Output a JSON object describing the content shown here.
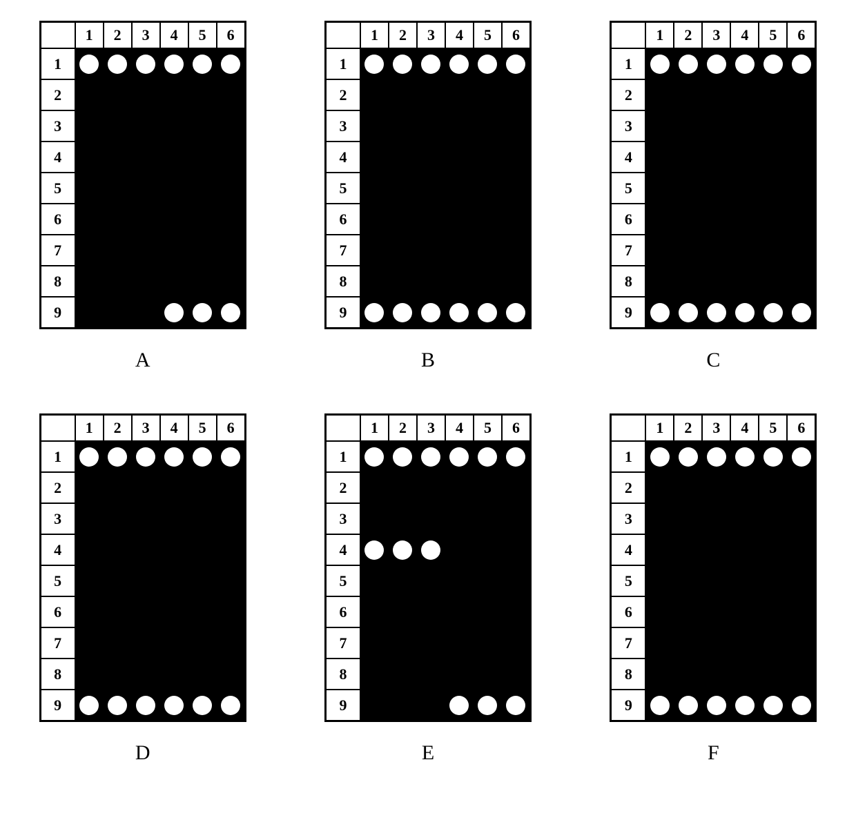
{
  "layout": {
    "cols": 6,
    "rows": 9,
    "col_labels": [
      "1",
      "2",
      "3",
      "4",
      "5",
      "6"
    ],
    "row_labels": [
      "1",
      "2",
      "3",
      "4",
      "5",
      "6",
      "7",
      "8",
      "9"
    ]
  },
  "colors": {
    "plate_bg": "#000000",
    "spot_color": "#ffffff",
    "border_color": "#000000",
    "page_bg": "#ffffff"
  },
  "typography": {
    "label_fontsize_pt": 22,
    "panel_label_fontsize_pt": 30,
    "font_family": "Times New Roman"
  },
  "panels": [
    {
      "label": "A",
      "spots": [
        {
          "r": 1,
          "c": 1
        },
        {
          "r": 1,
          "c": 2
        },
        {
          "r": 1,
          "c": 3
        },
        {
          "r": 1,
          "c": 4
        },
        {
          "r": 1,
          "c": 5
        },
        {
          "r": 1,
          "c": 6
        },
        {
          "r": 9,
          "c": 4
        },
        {
          "r": 9,
          "c": 5
        },
        {
          "r": 9,
          "c": 6
        }
      ]
    },
    {
      "label": "B",
      "spots": [
        {
          "r": 1,
          "c": 1
        },
        {
          "r": 1,
          "c": 2
        },
        {
          "r": 1,
          "c": 3
        },
        {
          "r": 1,
          "c": 4
        },
        {
          "r": 1,
          "c": 5
        },
        {
          "r": 1,
          "c": 6
        },
        {
          "r": 9,
          "c": 1
        },
        {
          "r": 9,
          "c": 2
        },
        {
          "r": 9,
          "c": 3
        },
        {
          "r": 9,
          "c": 4
        },
        {
          "r": 9,
          "c": 5
        },
        {
          "r": 9,
          "c": 6
        }
      ]
    },
    {
      "label": "C",
      "spots": [
        {
          "r": 1,
          "c": 1
        },
        {
          "r": 1,
          "c": 2
        },
        {
          "r": 1,
          "c": 3
        },
        {
          "r": 1,
          "c": 4
        },
        {
          "r": 1,
          "c": 5
        },
        {
          "r": 1,
          "c": 6
        },
        {
          "r": 9,
          "c": 1
        },
        {
          "r": 9,
          "c": 2
        },
        {
          "r": 9,
          "c": 3
        },
        {
          "r": 9,
          "c": 4
        },
        {
          "r": 9,
          "c": 5
        },
        {
          "r": 9,
          "c": 6
        }
      ]
    },
    {
      "label": "D",
      "spots": [
        {
          "r": 1,
          "c": 1
        },
        {
          "r": 1,
          "c": 2
        },
        {
          "r": 1,
          "c": 3
        },
        {
          "r": 1,
          "c": 4
        },
        {
          "r": 1,
          "c": 5
        },
        {
          "r": 1,
          "c": 6
        },
        {
          "r": 9,
          "c": 1
        },
        {
          "r": 9,
          "c": 2
        },
        {
          "r": 9,
          "c": 3
        },
        {
          "r": 9,
          "c": 4
        },
        {
          "r": 9,
          "c": 5
        },
        {
          "r": 9,
          "c": 6
        }
      ]
    },
    {
      "label": "E",
      "spots": [
        {
          "r": 1,
          "c": 1
        },
        {
          "r": 1,
          "c": 2
        },
        {
          "r": 1,
          "c": 3
        },
        {
          "r": 1,
          "c": 4
        },
        {
          "r": 1,
          "c": 5
        },
        {
          "r": 1,
          "c": 6
        },
        {
          "r": 4,
          "c": 1
        },
        {
          "r": 4,
          "c": 2
        },
        {
          "r": 4,
          "c": 3
        },
        {
          "r": 9,
          "c": 4
        },
        {
          "r": 9,
          "c": 5
        },
        {
          "r": 9,
          "c": 6
        }
      ]
    },
    {
      "label": "F",
      "spots": [
        {
          "r": 1,
          "c": 1
        },
        {
          "r": 1,
          "c": 2
        },
        {
          "r": 1,
          "c": 3
        },
        {
          "r": 1,
          "c": 4
        },
        {
          "r": 1,
          "c": 5
        },
        {
          "r": 1,
          "c": 6
        },
        {
          "r": 9,
          "c": 1
        },
        {
          "r": 9,
          "c": 2
        },
        {
          "r": 9,
          "c": 3
        },
        {
          "r": 9,
          "c": 4
        },
        {
          "r": 9,
          "c": 5
        },
        {
          "r": 9,
          "c": 6
        }
      ]
    }
  ]
}
